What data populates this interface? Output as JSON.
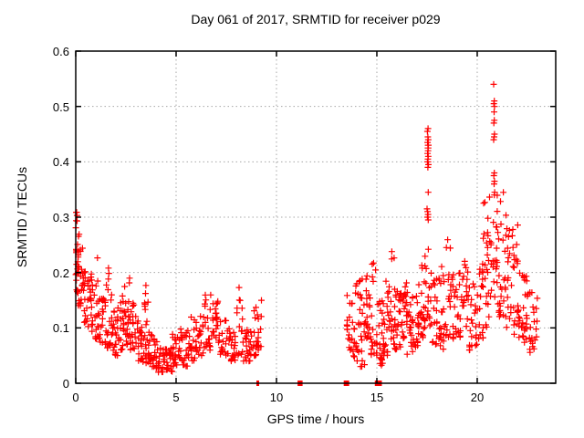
{
  "chart_data": {
    "type": "scatter",
    "title": "Day 061 of 2017, SRMTID for receiver p029",
    "xlabel": "GPS time / hours",
    "ylabel": "SRMTID / TECUs",
    "xlim": [
      0,
      23.91
    ],
    "ylim": [
      0,
      0.6
    ],
    "xticks": [
      0,
      5,
      10,
      15,
      20
    ],
    "yticks": [
      0,
      0.1,
      0.2,
      0.3,
      0.4,
      0.5,
      0.6
    ],
    "ytick_labels": [
      "0",
      "0.1",
      "0.2",
      "0.3",
      "0.4",
      "0.5",
      "0.6"
    ],
    "xtick_labels": [
      "0",
      "5",
      "10",
      "15",
      "20"
    ],
    "grid": true,
    "grid_color": "#a8a8a8",
    "legend": null,
    "marker": "plus",
    "marker_color": "#ff0000",
    "axis_color": "#000000",
    "render_seed": 2017061,
    "series": [
      {
        "name": "SRMTID",
        "note": "dense scatter summarized as bins [xStart,xEnd,yMin,yMax,count,spreadPow]; explicit points for tall spikes and on-axis zero clusters",
        "bins": [
          [
            0.0,
            0.15,
            0.16,
            0.31,
            26,
            1.0
          ],
          [
            0.12,
            0.35,
            0.14,
            0.28,
            20,
            1.2
          ],
          [
            0.35,
            0.6,
            0.11,
            0.22,
            18,
            1.3
          ],
          [
            0.6,
            0.9,
            0.09,
            0.2,
            20,
            1.4
          ],
          [
            0.9,
            1.2,
            0.08,
            0.23,
            20,
            1.6
          ],
          [
            1.2,
            1.5,
            0.07,
            0.16,
            20,
            1.4
          ],
          [
            1.5,
            1.8,
            0.06,
            0.23,
            22,
            1.8
          ],
          [
            1.8,
            2.1,
            0.05,
            0.13,
            20,
            1.4
          ],
          [
            2.1,
            2.4,
            0.06,
            0.16,
            20,
            1.5
          ],
          [
            2.4,
            2.7,
            0.07,
            0.19,
            22,
            1.4
          ],
          [
            2.7,
            3.0,
            0.06,
            0.15,
            20,
            1.5
          ],
          [
            3.0,
            3.3,
            0.04,
            0.12,
            20,
            1.4
          ],
          [
            3.3,
            3.6,
            0.03,
            0.18,
            22,
            1.8
          ],
          [
            3.6,
            4.0,
            0.03,
            0.1,
            22,
            1.5
          ],
          [
            4.0,
            4.4,
            0.02,
            0.08,
            24,
            1.4
          ],
          [
            4.4,
            4.8,
            0.02,
            0.07,
            24,
            1.3
          ],
          [
            4.8,
            5.2,
            0.03,
            0.09,
            24,
            1.4
          ],
          [
            5.2,
            5.6,
            0.03,
            0.1,
            22,
            1.4
          ],
          [
            5.6,
            6.0,
            0.04,
            0.12,
            22,
            1.5
          ],
          [
            6.0,
            6.4,
            0.05,
            0.13,
            20,
            1.4
          ],
          [
            6.4,
            6.8,
            0.06,
            0.17,
            20,
            1.6
          ],
          [
            6.8,
            7.2,
            0.07,
            0.15,
            22,
            1.3
          ],
          [
            7.2,
            7.6,
            0.05,
            0.12,
            20,
            1.4
          ],
          [
            7.6,
            8.0,
            0.04,
            0.1,
            20,
            1.4
          ],
          [
            8.0,
            8.35,
            0.05,
            0.18,
            16,
            1.7
          ],
          [
            8.35,
            8.7,
            0.04,
            0.1,
            18,
            1.4
          ],
          [
            8.7,
            9.0,
            0.05,
            0.14,
            18,
            1.5
          ],
          [
            9.0,
            9.25,
            0.06,
            0.16,
            14,
            1.5
          ],
          [
            13.5,
            13.8,
            0.06,
            0.16,
            18,
            1.4
          ],
          [
            13.8,
            14.1,
            0.04,
            0.18,
            20,
            1.5
          ],
          [
            14.1,
            14.4,
            0.03,
            0.19,
            20,
            1.5
          ],
          [
            14.4,
            14.7,
            0.08,
            0.2,
            20,
            1.4
          ],
          [
            14.7,
            15.0,
            0.05,
            0.22,
            20,
            1.5
          ],
          [
            15.0,
            15.3,
            0.03,
            0.15,
            20,
            1.4
          ],
          [
            15.3,
            15.6,
            0.05,
            0.19,
            20,
            1.5
          ],
          [
            15.6,
            15.9,
            0.07,
            0.24,
            22,
            1.6
          ],
          [
            15.9,
            16.2,
            0.06,
            0.18,
            20,
            1.4
          ],
          [
            16.2,
            16.5,
            0.08,
            0.2,
            20,
            1.4
          ],
          [
            16.5,
            16.8,
            0.05,
            0.17,
            20,
            1.4
          ],
          [
            16.8,
            17.1,
            0.06,
            0.19,
            20,
            1.4
          ],
          [
            17.1,
            17.4,
            0.08,
            0.22,
            20,
            1.5
          ],
          [
            17.4,
            17.7,
            0.1,
            0.25,
            16,
            1.3
          ],
          [
            17.7,
            18.0,
            0.07,
            0.2,
            18,
            1.4
          ],
          [
            18.0,
            18.4,
            0.06,
            0.22,
            22,
            1.5
          ],
          [
            18.4,
            18.8,
            0.08,
            0.26,
            22,
            1.5
          ],
          [
            18.8,
            19.2,
            0.08,
            0.22,
            22,
            1.4
          ],
          [
            19.2,
            19.6,
            0.1,
            0.23,
            22,
            1.3
          ],
          [
            19.6,
            20.0,
            0.06,
            0.18,
            22,
            1.4
          ],
          [
            20.0,
            20.3,
            0.08,
            0.25,
            20,
            1.5
          ],
          [
            20.3,
            20.6,
            0.1,
            0.33,
            22,
            1.6
          ],
          [
            20.6,
            21.0,
            0.15,
            0.35,
            24,
            1.3
          ],
          [
            21.0,
            21.4,
            0.12,
            0.35,
            24,
            1.5
          ],
          [
            21.4,
            21.8,
            0.1,
            0.31,
            24,
            1.5
          ],
          [
            21.8,
            22.2,
            0.08,
            0.3,
            24,
            1.6
          ],
          [
            22.2,
            22.6,
            0.07,
            0.2,
            24,
            1.4
          ],
          [
            22.6,
            23.0,
            0.05,
            0.17,
            20,
            1.4
          ]
        ],
        "spike_points": [
          [
            17.52,
            0.455
          ],
          [
            17.55,
            0.46
          ],
          [
            17.54,
            0.445
          ],
          [
            17.56,
            0.44
          ],
          [
            17.53,
            0.435
          ],
          [
            17.55,
            0.43
          ],
          [
            17.57,
            0.43
          ],
          [
            17.54,
            0.425
          ],
          [
            17.56,
            0.425
          ],
          [
            17.55,
            0.42
          ],
          [
            17.53,
            0.415
          ],
          [
            17.56,
            0.41
          ],
          [
            17.54,
            0.405
          ],
          [
            17.52,
            0.4
          ],
          [
            17.55,
            0.4
          ],
          [
            17.57,
            0.395
          ],
          [
            17.54,
            0.39
          ],
          [
            17.56,
            0.345
          ],
          [
            17.5,
            0.315
          ],
          [
            17.53,
            0.31
          ],
          [
            17.55,
            0.305
          ],
          [
            17.52,
            0.3
          ],
          [
            17.54,
            0.3
          ],
          [
            17.56,
            0.295
          ],
          [
            20.82,
            0.54
          ],
          [
            20.85,
            0.51
          ],
          [
            20.83,
            0.505
          ],
          [
            20.86,
            0.5
          ],
          [
            20.84,
            0.49
          ],
          [
            20.85,
            0.475
          ],
          [
            20.83,
            0.47
          ],
          [
            20.86,
            0.45
          ],
          [
            20.84,
            0.445
          ],
          [
            20.82,
            0.44
          ],
          [
            20.85,
            0.38
          ],
          [
            20.83,
            0.375
          ],
          [
            20.86,
            0.365
          ],
          [
            20.84,
            0.36
          ],
          [
            20.87,
            0.345
          ],
          [
            20.85,
            0.34
          ]
        ],
        "zero_segments": [
          [
            9.0,
            9.12
          ],
          [
            11.05,
            11.3
          ],
          [
            13.35,
            13.62
          ],
          [
            14.9,
            15.25
          ]
        ]
      }
    ]
  }
}
